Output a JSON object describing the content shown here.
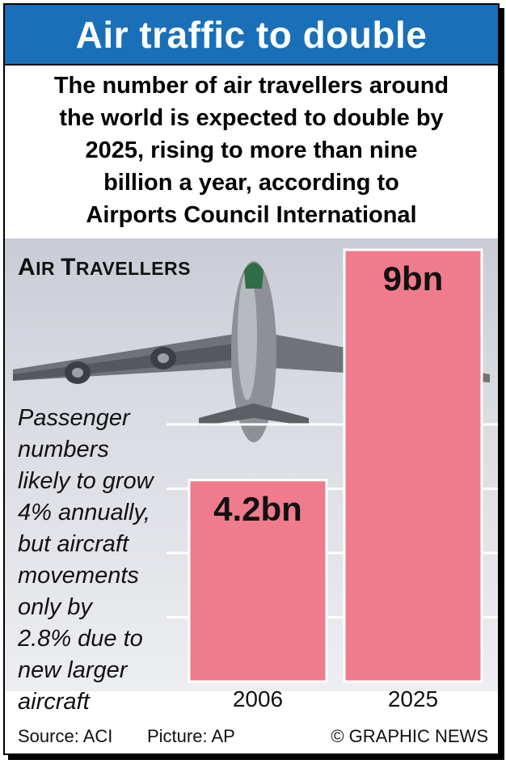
{
  "title": "Air traffic to double",
  "subtitle_lines": [
    "The number of air travellers around",
    "the world is expected to double by",
    "2025, rising to more than nine",
    "billion a year, according to",
    "Airports Council International"
  ],
  "section_label_first": "A",
  "section_label_rest_1": "IR ",
  "section_label_second": "T",
  "section_label_rest_2": "RAVELLERS",
  "note_lines": [
    "Passenger",
    "numbers",
    "likely to grow",
    "4% annually,",
    "but aircraft",
    "movements",
    "only by",
    "2.8% due to",
    "new larger",
    "aircraft"
  ],
  "footer": {
    "source": "Source: ACI",
    "picture": "Picture: AP",
    "credit": "© GRAPHIC NEWS"
  },
  "chart_data": {
    "type": "bar",
    "title": "Air Travellers",
    "categories": [
      "2006",
      "2025"
    ],
    "values": [
      4.2,
      9
    ],
    "value_labels": [
      "4.2bn",
      "9bn"
    ],
    "unit": "billion",
    "ylim": [
      0,
      9
    ],
    "bar_color": "#f07b8c",
    "grid": true
  },
  "colors": {
    "title_bar": "#1a6fb9",
    "bar": "#f07b8c"
  }
}
